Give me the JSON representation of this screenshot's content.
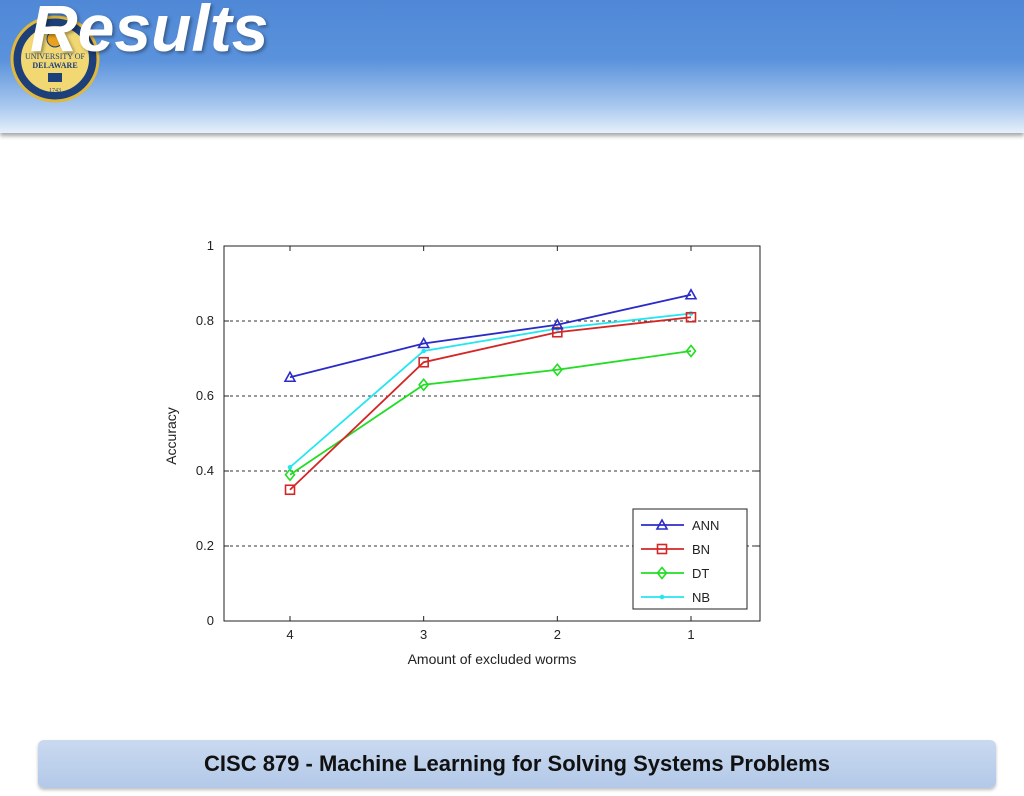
{
  "slide": {
    "title": "Results",
    "footer": "CISC 879 - Machine Learning for Solving Systems Problems"
  },
  "logo": {
    "icon": "university-of-delaware-seal-icon",
    "text_top": "UNIVERSITY OF",
    "text_bottom": "DELAWARE",
    "year": "1743"
  },
  "colors": {
    "header": "#5a92dc",
    "footer": "#b8cdea",
    "ANN": "#2b2bc8",
    "BN": "#d42626",
    "DT": "#22dd22",
    "NB": "#22e6f0"
  },
  "chart_data": {
    "type": "line",
    "categories": [
      "4",
      "3",
      "2",
      "1"
    ],
    "series": [
      {
        "name": "ANN",
        "marker": "triangle",
        "values": [
          0.65,
          0.74,
          0.79,
          0.87
        ]
      },
      {
        "name": "BN",
        "marker": "square",
        "values": [
          0.35,
          0.69,
          0.77,
          0.81
        ]
      },
      {
        "name": "DT",
        "marker": "diamond",
        "values": [
          0.39,
          0.63,
          0.67,
          0.72
        ]
      },
      {
        "name": "NB",
        "marker": "point",
        "values": [
          0.41,
          0.72,
          0.78,
          0.82
        ]
      }
    ],
    "xlabel": "Amount of excluded worms",
    "ylabel": "Accuracy",
    "ylim": [
      0,
      1
    ],
    "yticks": [
      "0",
      "0.2",
      "0.4",
      "0.6",
      "0.8",
      "1"
    ],
    "grid": "horizontal dashed",
    "legend": "bottom-right"
  }
}
